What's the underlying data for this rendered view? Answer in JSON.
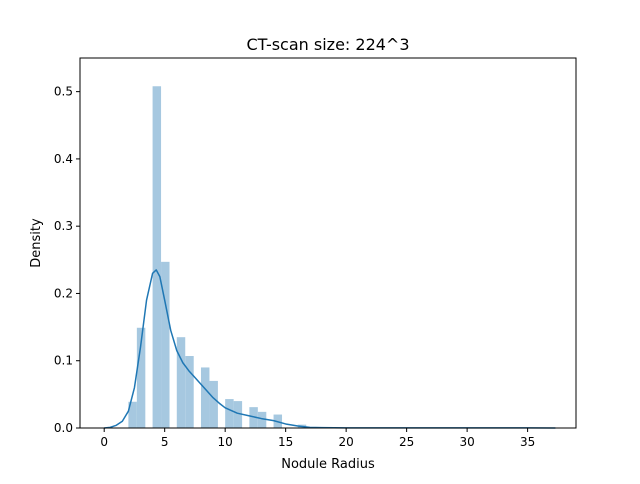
{
  "chart_data": {
    "type": "bar",
    "title": "CT-scan size: 224^3",
    "xlabel": "Nodule Radius",
    "ylabel": "Density",
    "xlim": [
      -2,
      39
    ],
    "ylim": [
      0,
      0.55
    ],
    "xticks": [
      0,
      5,
      10,
      15,
      20,
      25,
      30,
      35
    ],
    "xtick_labels": [
      "0",
      "5",
      "10",
      "15",
      "20",
      "25",
      "30",
      "35"
    ],
    "yticks": [
      0.0,
      0.1,
      0.2,
      0.3,
      0.4,
      0.5
    ],
    "ytick_labels": [
      "0.0",
      "0.1",
      "0.2",
      "0.3",
      "0.4",
      "0.5"
    ],
    "grid": false,
    "bar_color": "#a6c8e0",
    "line_color": "#1f77b4",
    "histogram": {
      "bin_width": 0.7,
      "bars": [
        {
          "x": 2.0,
          "density": 0.039
        },
        {
          "x": 2.7,
          "density": 0.149
        },
        {
          "x": 4.0,
          "density": 0.508
        },
        {
          "x": 4.7,
          "density": 0.247
        },
        {
          "x": 6.0,
          "density": 0.135
        },
        {
          "x": 6.7,
          "density": 0.107
        },
        {
          "x": 8.0,
          "density": 0.09
        },
        {
          "x": 8.7,
          "density": 0.07
        },
        {
          "x": 10.0,
          "density": 0.043
        },
        {
          "x": 10.7,
          "density": 0.04
        },
        {
          "x": 12.0,
          "density": 0.031
        },
        {
          "x": 12.7,
          "density": 0.024
        },
        {
          "x": 14.0,
          "density": 0.02
        },
        {
          "x": 16.0,
          "density": 0.005
        }
      ]
    },
    "kde": {
      "x": [
        0,
        0.5,
        1,
        1.5,
        2,
        2.5,
        3,
        3.5,
        4,
        4.3,
        4.6,
        5,
        5.5,
        6,
        6.5,
        7,
        7.5,
        8,
        8.5,
        9,
        9.5,
        10,
        11,
        12,
        13,
        14,
        15,
        16,
        17,
        18,
        20,
        25,
        30,
        35,
        37.3
      ],
      "y": [
        0.0,
        0.001,
        0.004,
        0.01,
        0.025,
        0.06,
        0.12,
        0.19,
        0.23,
        0.235,
        0.225,
        0.19,
        0.145,
        0.115,
        0.097,
        0.085,
        0.075,
        0.065,
        0.055,
        0.045,
        0.037,
        0.03,
        0.022,
        0.018,
        0.014,
        0.011,
        0.006,
        0.003,
        0.001,
        0.0005,
        0.0002,
        0.0001,
        0.0001,
        0.0001,
        0.0
      ]
    }
  }
}
